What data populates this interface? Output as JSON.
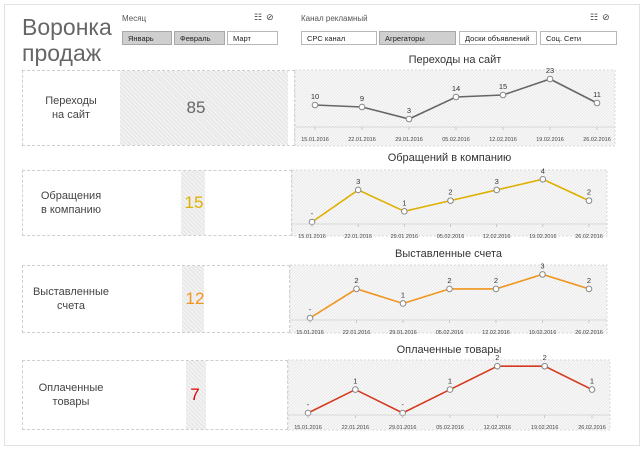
{
  "title": "Воронка\nпродаж",
  "filters": {
    "month": {
      "label": "Месяц",
      "options": [
        {
          "label": "Январь",
          "selected": true
        },
        {
          "label": "Февраль",
          "selected": true
        },
        {
          "label": "Март",
          "selected": false
        }
      ]
    },
    "channel": {
      "label": "Канал рекламный",
      "options": [
        {
          "label": "CPC канал",
          "selected": false
        },
        {
          "label": "Агрегаторы",
          "selected": true
        },
        {
          "label": "Доски объявлений",
          "selected": false
        },
        {
          "label": "Соц. Сети",
          "selected": false
        }
      ]
    }
  },
  "rows": [
    {
      "label": "Переходы\nна сайт",
      "kpi": "85",
      "color": "#666666",
      "kpi_color": "#666666"
    },
    {
      "label": "Обращения\nв компанию",
      "kpi": "15",
      "color": "#e0b000",
      "kpi_color": "#e0b000"
    },
    {
      "label": "Выставленные\nсчета",
      "kpi": "12",
      "color": "#f0941c",
      "kpi_color": "#f0941c"
    },
    {
      "label": "Оплаченные\nтовары",
      "kpi": "7",
      "color": "#d43a1e",
      "kpi_color": "#e00000"
    }
  ],
  "chart_data": [
    {
      "type": "line",
      "title": "Переходы на сайт",
      "x": [
        "15.01.2016",
        "22.01.2016",
        "29.01.2016",
        "05.02.2016",
        "12.02.2016",
        "19.02.2016",
        "26.02.2016"
      ],
      "y": [
        10,
        9,
        3,
        14,
        15,
        23,
        11
      ],
      "labels": [
        "10",
        "9",
        "3",
        "14",
        "15",
        "23",
        "11"
      ],
      "ylim": [
        0,
        25
      ]
    },
    {
      "type": "line",
      "title": "Обращений в компанию",
      "x": [
        "15.01.2016",
        "22.01.2016",
        "29.01.2016",
        "05.02.2016",
        "12.02.2016",
        "19.02.2016",
        "26.02.2016"
      ],
      "y": [
        0,
        3,
        1,
        2,
        3,
        4,
        2
      ],
      "labels": [
        "-",
        "3",
        "1",
        "2",
        "3",
        "4",
        "2"
      ],
      "ylim": [
        0,
        4.4
      ]
    },
    {
      "type": "line",
      "title": "Выставленные счета",
      "x": [
        "15.01.2016",
        "22.01.2016",
        "29.01.2016",
        "05.02.2016",
        "12.02.2016",
        "19.02.2016",
        "26.02.2016"
      ],
      "y": [
        0,
        2,
        1,
        2,
        2,
        3,
        2
      ],
      "labels": [
        "-",
        "2",
        "1",
        "2",
        "2",
        "3",
        "2"
      ],
      "ylim": [
        0,
        3.3
      ]
    },
    {
      "type": "line",
      "title": "Оплаченные товары",
      "x": [
        "15.01.2016",
        "22.01.2016",
        "29.01.2016",
        "05.02.2016",
        "12.02.2016",
        "19.02.2016",
        "26.02.2016"
      ],
      "y": [
        0,
        1,
        0,
        1,
        2,
        2,
        1
      ],
      "labels": [
        "-",
        "1",
        "-",
        "1",
        "2",
        "2",
        "1"
      ],
      "ylim": [
        0,
        2.05
      ]
    }
  ]
}
